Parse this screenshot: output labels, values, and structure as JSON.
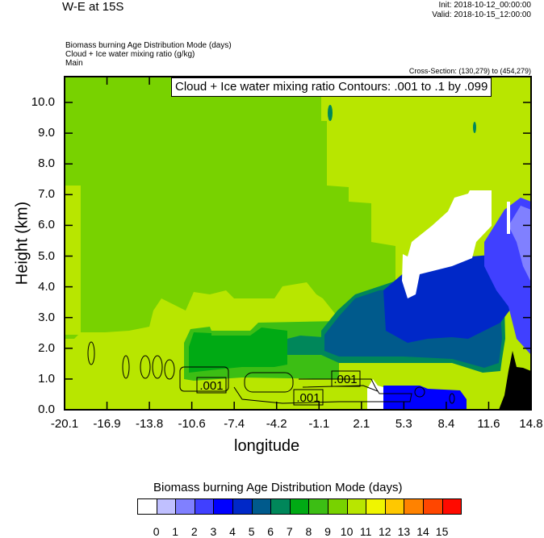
{
  "header": {
    "title": "W-E at 15S",
    "init": "Init: 2018-10-12_00:00:00",
    "valid": "Valid: 2018-10-15_12:00:00",
    "subtitles": [
      "Biomass burning Age Distribution Mode   (days)",
      "Cloud + Ice water mixing ratio   (g/kg)",
      "Main"
    ],
    "cross_section": "Cross-Section: (130,279) to (454,279)"
  },
  "chart_data": {
    "type": "heatmap",
    "title": "W-E at 15S",
    "xlabel": "longitude",
    "ylabel": "Height (km)",
    "xlim": [
      -20.1,
      14.8
    ],
    "ylim": [
      0.0,
      10.85
    ],
    "xticks": [
      "-20.1",
      "-16.9",
      "-13.8",
      "-10.6",
      "-7.4",
      "-4.2",
      "-1.1",
      "2.1",
      "5.3",
      "8.4",
      "11.6",
      "14.8"
    ],
    "yticks": [
      "0.0",
      "1.0",
      "2.0",
      "3.0",
      "4.0",
      "5.0",
      "6.0",
      "7.0",
      "8.0",
      "9.0",
      "10.0"
    ],
    "contour_legend": "Cloud + Ice water mixing ratio Contours: .001 to .1 by .099",
    "contour_labels": [
      ".001",
      ".001",
      ".001"
    ],
    "colorbar": {
      "title": "Biomass burning Age Distribution Mode  (days)",
      "labels": [
        "0",
        "1",
        "2",
        "3",
        "4",
        "5",
        "6",
        "7",
        "8",
        "9",
        "10",
        "11",
        "12",
        "13",
        "14",
        "15"
      ],
      "colors": [
        "#ffffff",
        "#c0c0ff",
        "#8080ff",
        "#4040ff",
        "#0000ff",
        "#0028c8",
        "#005a8c",
        "#00875a",
        "#00aa14",
        "#3cbe14",
        "#78d200",
        "#b8e600",
        "#f0f500",
        "#ffc800",
        "#ff8200",
        "#ff4600",
        "#ff0a00"
      ]
    }
  }
}
